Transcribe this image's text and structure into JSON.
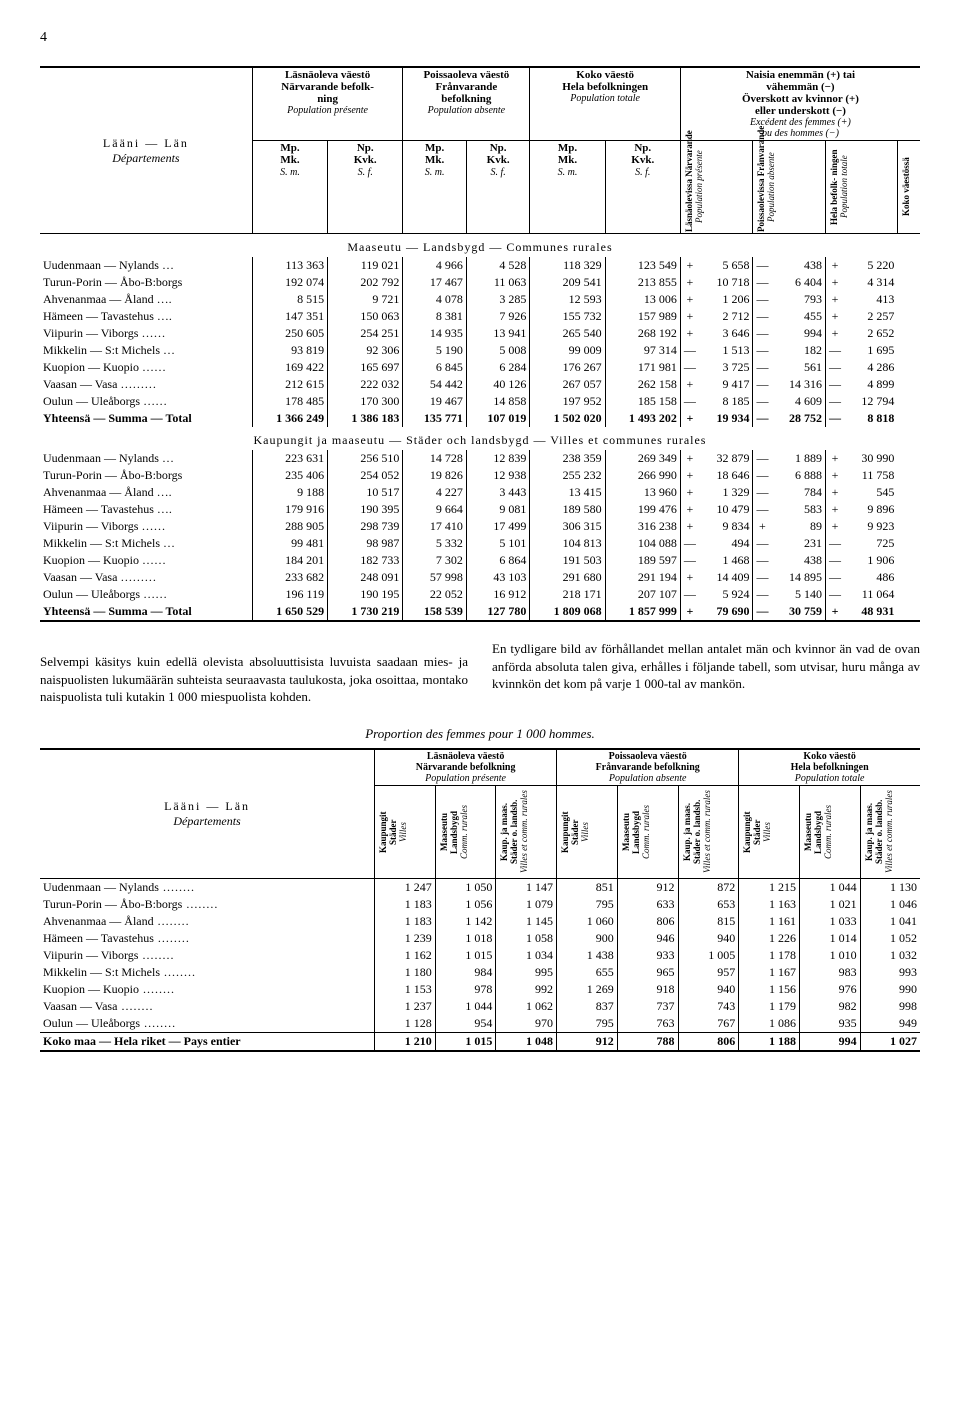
{
  "page_number": "4",
  "table1": {
    "group_headers": {
      "col1": {
        "l1": "Läsnäoleva väestö",
        "l2": "Närvarande befolk-",
        "l3": "ning",
        "it": "Population présente"
      },
      "col2": {
        "l1": "Poissaoleva väestö",
        "l2": "Frånvarande",
        "l3": "befolkning",
        "it": "Population absente"
      },
      "col3": {
        "l1": "Koko väestö",
        "l2": "Hela befolkningen",
        "it": "Population totale"
      },
      "col4": {
        "l1": "Naisia enemmän (+) tai",
        "l2": "vähemmän (−)",
        "l3": "Överskott av kvinnor (+)",
        "l4": "eller underskott (−)",
        "it": "Excédent des femmes (+)",
        "it2": "ou des hommes (−)"
      }
    },
    "side_label": {
      "l1": "Lääni — Län",
      "it": "Départements"
    },
    "sub_headers": {
      "mp": "Mp.",
      "mk": "Mk.",
      "sm": "S. m.",
      "np": "Np.",
      "kvk": "Kvk.",
      "sf": "S. f."
    },
    "vcols": [
      {
        "a": "Läsnäolevissa",
        "b": "Närvarande",
        "it": "Population présente"
      },
      {
        "a": "Poissaolevissa",
        "b": "Frånvarande",
        "it": "Population absente"
      },
      {
        "a": "Hela befolk-",
        "b": "ningen",
        "it": "Population totale"
      },
      {
        "a": "Koko väestössä",
        "b": "",
        "it": ""
      }
    ],
    "section1_title": "Maaseutu — Landsbygd — Communes rurales",
    "section2_title": "Kaupungit ja maaseutu — Städer och landsbygd — Villes et communes rurales",
    "rows_labels": [
      "Uudenmaan — Nylands …",
      "Turun-Porin — Åbo-B:borgs",
      "Ahvenanmaa — Åland ….",
      "Hämeen — Tavastehus ….",
      "Viipurin — Viborgs ……",
      "Mikkelin — S:t Michels …",
      "Kuopion — Kuopio ……",
      "Vaasan — Vasa ………",
      "Oulun — Uleåborgs ……"
    ],
    "total_label": "Yhteensä — Summa — Total",
    "section1": [
      [
        "113 363",
        "119 021",
        "4 966",
        "4 528",
        "118 329",
        "123 549",
        "+",
        "5 658",
        "—",
        "438",
        "+",
        "5 220"
      ],
      [
        "192 074",
        "202 792",
        "17 467",
        "11 063",
        "209 541",
        "213 855",
        "+",
        "10 718",
        "—",
        "6 404",
        "+",
        "4 314"
      ],
      [
        "8 515",
        "9 721",
        "4 078",
        "3 285",
        "12 593",
        "13 006",
        "+",
        "1 206",
        "—",
        "793",
        "+",
        "413"
      ],
      [
        "147 351",
        "150 063",
        "8 381",
        "7 926",
        "155 732",
        "157 989",
        "+",
        "2 712",
        "—",
        "455",
        "+",
        "2 257"
      ],
      [
        "250 605",
        "254 251",
        "14 935",
        "13 941",
        "265 540",
        "268 192",
        "+",
        "3 646",
        "—",
        "994",
        "+",
        "2 652"
      ],
      [
        "93 819",
        "92 306",
        "5 190",
        "5 008",
        "99 009",
        "97 314",
        "—",
        "1 513",
        "—",
        "182",
        "—",
        "1 695"
      ],
      [
        "169 422",
        "165 697",
        "6 845",
        "6 284",
        "176 267",
        "171 981",
        "—",
        "3 725",
        "—",
        "561",
        "—",
        "4 286"
      ],
      [
        "212 615",
        "222 032",
        "54 442",
        "40 126",
        "267 057",
        "262 158",
        "+",
        "9 417",
        "—",
        "14 316",
        "—",
        "4 899"
      ],
      [
        "178 485",
        "170 300",
        "19 467",
        "14 858",
        "197 952",
        "185 158",
        "—",
        "8 185",
        "—",
        "4 609",
        "—",
        "12 794"
      ]
    ],
    "section1_total": [
      "1 366 249",
      "1 386 183",
      "135 771",
      "107 019",
      "1 502 020",
      "1 493 202",
      "+",
      "19 934",
      "—",
      "28 752",
      "—",
      "8 818"
    ],
    "section2": [
      [
        "223 631",
        "256 510",
        "14 728",
        "12 839",
        "238 359",
        "269 349",
        "+",
        "32 879",
        "—",
        "1 889",
        "+",
        "30 990"
      ],
      [
        "235 406",
        "254 052",
        "19 826",
        "12 938",
        "255 232",
        "266 990",
        "+",
        "18 646",
        "—",
        "6 888",
        "+",
        "11 758"
      ],
      [
        "9 188",
        "10 517",
        "4 227",
        "3 443",
        "13 415",
        "13 960",
        "+",
        "1 329",
        "—",
        "784",
        "+",
        "545"
      ],
      [
        "179 916",
        "190 395",
        "9 664",
        "9 081",
        "189 580",
        "199 476",
        "+",
        "10 479",
        "—",
        "583",
        "+",
        "9 896"
      ],
      [
        "288 905",
        "298 739",
        "17 410",
        "17 499",
        "306 315",
        "316 238",
        "+",
        "9 834",
        "+",
        "89",
        "+",
        "9 923"
      ],
      [
        "99 481",
        "98 987",
        "5 332",
        "5 101",
        "104 813",
        "104 088",
        "—",
        "494",
        "—",
        "231",
        "—",
        "725"
      ],
      [
        "184 201",
        "182 733",
        "7 302",
        "6 864",
        "191 503",
        "189 597",
        "—",
        "1 468",
        "—",
        "438",
        "—",
        "1 906"
      ],
      [
        "233 682",
        "248 091",
        "57 998",
        "43 103",
        "291 680",
        "291 194",
        "+",
        "14 409",
        "—",
        "14 895",
        "—",
        "486"
      ],
      [
        "196 119",
        "190 195",
        "22 052",
        "16 912",
        "218 171",
        "207 107",
        "—",
        "5 924",
        "—",
        "5 140",
        "—",
        "11 064"
      ]
    ],
    "section2_total": [
      "1 650 529",
      "1 730 219",
      "158 539",
      "127 780",
      "1 809 068",
      "1 857 999",
      "+",
      "79 690",
      "—",
      "30 759",
      "+",
      "48 931"
    ]
  },
  "prose": {
    "left": "Selvempi käsitys kuin edellä olevista absoluuttisista luvuista saadaan mies- ja naispuolisten lukumäärän suhteista seuraavasta taulukosta, joka osoittaa, montako naispuolista tuli kutakin 1 000 miespuolista kohden.",
    "right": "En tydligare bild av förhållandet mellan antalet män och kvinnor än vad de ovan anförda absoluta talen giva, erhålles i följande tabell, som utvisar, huru många av kvinnkön det kom på varje 1 000-tal av mankön."
  },
  "table2": {
    "caption": "Proportion des femmes pour 1 000 hommes.",
    "group_headers": [
      {
        "a": "Läsnäoleva väestö",
        "b": "Närvarande befolkning",
        "it": "Population présente"
      },
      {
        "a": "Poissaoleva väestö",
        "b": "Frånvarande befolkning",
        "it": "Population absente"
      },
      {
        "a": "Koko väestö",
        "b": "Hela befolkningen",
        "it": "Population totale"
      }
    ],
    "side_label": {
      "l1": "Lääni — Län",
      "it": "Départements"
    },
    "vcols": [
      {
        "a": "Kaupungit",
        "b": "Städer",
        "it": "Villes"
      },
      {
        "a": "Maaseutu",
        "b": "Landsbygd",
        "it": "Comm. rurales"
      },
      {
        "a": "Kaup. ja maas.",
        "b": "Städer o. landsb.",
        "it": "Villes et comm. rurales"
      }
    ],
    "rows_labels": [
      "Uudenmaan — Nylands",
      "Turun-Porin — Åbo-B:borgs",
      "Ahvenanmaa — Åland",
      "Hämeen — Tavastehus",
      "Viipurin — Viborgs",
      "Mikkelin — S:t Michels",
      "Kuopion — Kuopio",
      "Vaasan — Vasa",
      "Oulun — Uleåborgs"
    ],
    "rows": [
      [
        "1 247",
        "1 050",
        "1 147",
        "851",
        "912",
        "872",
        "1 215",
        "1 044",
        "1 130"
      ],
      [
        "1 183",
        "1 056",
        "1 079",
        "795",
        "633",
        "653",
        "1 163",
        "1 021",
        "1 046"
      ],
      [
        "1 183",
        "1 142",
        "1 145",
        "1 060",
        "806",
        "815",
        "1 161",
        "1 033",
        "1 041"
      ],
      [
        "1 239",
        "1 018",
        "1 058",
        "900",
        "946",
        "940",
        "1 226",
        "1 014",
        "1 052"
      ],
      [
        "1 162",
        "1 015",
        "1 034",
        "1 438",
        "933",
        "1 005",
        "1 178",
        "1 010",
        "1 032"
      ],
      [
        "1 180",
        "984",
        "995",
        "655",
        "965",
        "957",
        "1 167",
        "983",
        "993"
      ],
      [
        "1 153",
        "978",
        "992",
        "1 269",
        "918",
        "940",
        "1 156",
        "976",
        "990"
      ],
      [
        "1 237",
        "1 044",
        "1 062",
        "837",
        "737",
        "743",
        "1 179",
        "982",
        "998"
      ],
      [
        "1 128",
        "954",
        "970",
        "795",
        "763",
        "767",
        "1 086",
        "935",
        "949"
      ]
    ],
    "total_label": "Koko maa — Hela riket — Pays entier",
    "total": [
      "1 210",
      "1 015",
      "1 048",
      "912",
      "788",
      "806",
      "1 188",
      "994",
      "1 027"
    ]
  }
}
